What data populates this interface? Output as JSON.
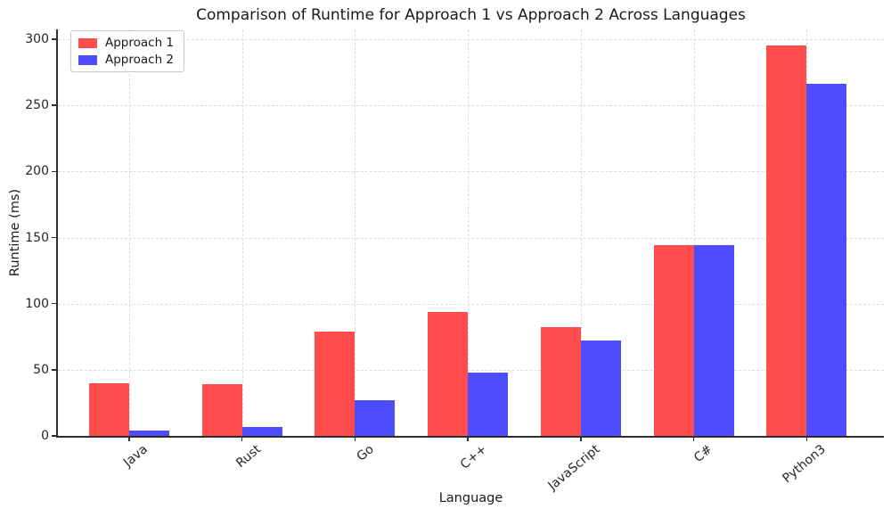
{
  "chart_data": {
    "type": "bar",
    "title": "Comparison of Runtime for Approach 1 vs Approach 2 Across Languages",
    "xlabel": "Language",
    "ylabel": "Runtime (ms)",
    "categories": [
      "Java",
      "Rust",
      "Go",
      "C++",
      "JavaScript",
      "C#",
      "Python3"
    ],
    "series": [
      {
        "name": "Approach 1",
        "color": "#FF4D4D",
        "values": [
          40,
          39,
          79,
          94,
          82,
          144,
          295
        ]
      },
      {
        "name": "Approach 2",
        "color": "#4D4DFF",
        "values": [
          4,
          7,
          27,
          48,
          72,
          144,
          266
        ]
      }
    ],
    "ylim": [
      0,
      307
    ],
    "yticks": [
      0,
      50,
      100,
      150,
      200,
      250,
      300
    ],
    "grid": true,
    "grid_style": "dashed",
    "legend_position": "upper left"
  }
}
